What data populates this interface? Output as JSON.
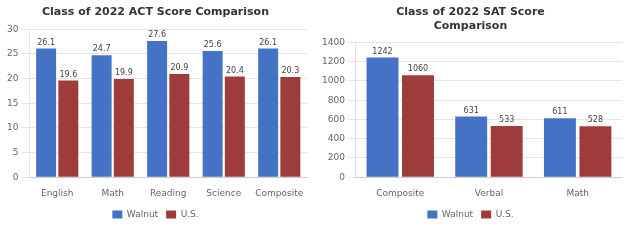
{
  "chart_data": [
    {
      "type": "bar",
      "title": "Class of 2022 ACT Score Comparison",
      "categories": [
        "English",
        "Math",
        "Reading",
        "Science",
        "Composite"
      ],
      "series": [
        {
          "name": "Walnut",
          "color": "#4472C4",
          "values": [
            26.1,
            24.7,
            27.6,
            25.6,
            26.1
          ]
        },
        {
          "name": "U.S.",
          "color": "#9E3B3B",
          "values": [
            19.6,
            19.9,
            20.9,
            20.4,
            20.3
          ]
        }
      ],
      "ylim": [
        0,
        30
      ],
      "yticks": [
        0,
        5,
        10,
        15,
        20,
        25,
        30
      ],
      "grid": true,
      "data_labels": true,
      "legend": "bottom"
    },
    {
      "type": "bar",
      "title": "Class of 2022 SAT Score\nComparison",
      "categories": [
        "Composite",
        "Verbal",
        "Math"
      ],
      "series": [
        {
          "name": "Walnut",
          "color": "#4472C4",
          "values": [
            1242,
            631,
            611
          ]
        },
        {
          "name": "U.S.",
          "color": "#9E3B3B",
          "values": [
            1060,
            533,
            528
          ]
        }
      ],
      "ylim": [
        0,
        1400
      ],
      "yticks": [
        0,
        200,
        400,
        600,
        800,
        1000,
        1200,
        1400
      ],
      "grid": true,
      "data_labels": true,
      "legend": "bottom"
    }
  ]
}
